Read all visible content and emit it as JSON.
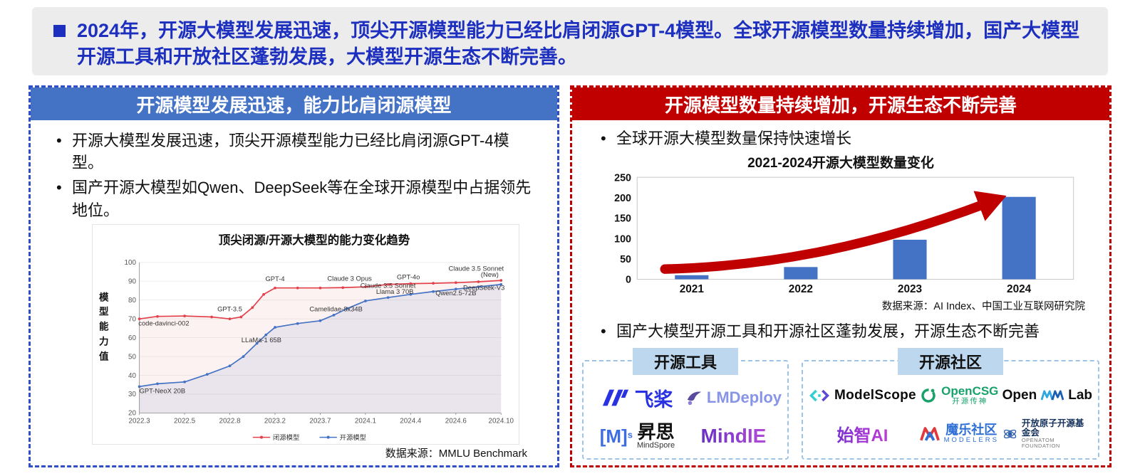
{
  "banner": {
    "text": "2024年，开源大模型发展迅速，顶尖开源模型能力已经比肩闭源GPT-4模型。全球开源模型数量持续增加，国产大模型开源工具和开放社区蓬勃发展，大模型开源生态不断完善。"
  },
  "left_panel": {
    "header": "开源模型发展迅速，能力比肩闭源模型",
    "bullets": [
      "开源大模型发展迅速，顶尖开源模型能力已经比肩闭源GPT-4模型。",
      "国产开源大模型如Qwen、DeepSeek等在全球开源模型中占据领先地位。"
    ]
  },
  "right_panel": {
    "header": "开源模型数量持续增加，开源生态不断完善",
    "bullet_growth": "全球开源大模型数量保持快速增长",
    "bullet_eco": "国产大模型开源工具和开源社区蓬勃发展，开源生态不断完善",
    "tools": {
      "header": "开源工具",
      "items": [
        {
          "name": "paddlepaddle",
          "label": "飞桨"
        },
        {
          "name": "lmdeploy",
          "label": "LMDeploy"
        },
        {
          "name": "mindspore",
          "logo": "[M]",
          "sup": "s",
          "label": "昇思",
          "sub": "MindSpore"
        },
        {
          "name": "mindie",
          "label": "MindIE"
        }
      ]
    },
    "community": {
      "header": "开源社区",
      "items": [
        {
          "name": "modelscope",
          "label": "ModelScope"
        },
        {
          "name": "opencsg",
          "label": "OpenCSG",
          "sub": "开源传神"
        },
        {
          "name": "openmmlab",
          "pre": "Open",
          "post": "Lab"
        },
        {
          "name": "shizhi-ai",
          "label": "始智AI"
        },
        {
          "name": "modelers",
          "label": "魔乐社区",
          "sub": "MODELERS"
        },
        {
          "name": "openatom",
          "label": "开放原子开源基金会",
          "sub": "OPENATOM FOUNDATION"
        }
      ]
    }
  },
  "chart_data": [
    {
      "id": "capability-trend",
      "type": "line",
      "title": "顶尖闭源/开源大模型的能力变化趋势",
      "ylabel": "模型能力值",
      "ylim": [
        20,
        100
      ],
      "ytick_step": 10,
      "grid": true,
      "legend_position": "bottom",
      "x_ticks": [
        "2022.3",
        "2022.5",
        "2022.8",
        "2023.2",
        "2023.7",
        "2024.1",
        "2024.4",
        "2024.6",
        "2024.10"
      ],
      "series": [
        {
          "name": "闭源模型",
          "color": "#e2414b",
          "fill": "rgba(226,65,75,0.07)",
          "points": [
            [
              0,
              70
            ],
            [
              0.4,
              71.3
            ],
            [
              1,
              71.5
            ],
            [
              1.6,
              71
            ],
            [
              2,
              70
            ],
            [
              2.25,
              71
            ],
            [
              2.5,
              76
            ],
            [
              2.75,
              83
            ],
            [
              3,
              86.4
            ],
            [
              3.5,
              86.4
            ],
            [
              4,
              86.4
            ],
            [
              4.5,
              86.6
            ],
            [
              5,
              87
            ],
            [
              5.5,
              88.3
            ],
            [
              6,
              88.7
            ],
            [
              6.5,
              88.9
            ],
            [
              7,
              89.2
            ],
            [
              7.5,
              89.7
            ],
            [
              8,
              90.4
            ]
          ]
        },
        {
          "name": "开源模型",
          "color": "#4472c4",
          "fill": "rgba(68,114,196,0.10)",
          "points": [
            [
              0,
              34
            ],
            [
              0.4,
              35.5
            ],
            [
              1,
              36.5
            ],
            [
              1.5,
              40.5
            ],
            [
              2,
              45
            ],
            [
              2.3,
              50
            ],
            [
              2.6,
              57
            ],
            [
              2.8,
              61.5
            ],
            [
              3,
              65.5
            ],
            [
              3.5,
              67.5
            ],
            [
              4,
              69
            ],
            [
              4.3,
              72
            ],
            [
              4.6,
              75.5
            ],
            [
              5,
              79.5
            ],
            [
              5.5,
              81.3
            ],
            [
              6,
              83
            ],
            [
              6.5,
              84.5
            ],
            [
              7,
              85.8
            ],
            [
              7.5,
              87
            ],
            [
              8,
              88.3
            ]
          ]
        }
      ],
      "annotations": [
        {
          "text": "code-davinci-002",
          "x": -0.02,
          "y": 66.5,
          "anchor": "start"
        },
        {
          "text": "GPT-NeoX 20B",
          "x": 0,
          "y": 30.5,
          "anchor": "start"
        },
        {
          "text": "GPT-3.5",
          "x": 2,
          "y": 74,
          "anchor": "middle"
        },
        {
          "text": "LLaMa-1 65B",
          "x": 2.7,
          "y": 57.5,
          "anchor": "middle"
        },
        {
          "text": "GPT-4",
          "x": 3,
          "y": 90,
          "anchor": "middle"
        },
        {
          "text": "Camelidae-8x34B",
          "x": 4.35,
          "y": 74,
          "anchor": "middle"
        },
        {
          "text": "Claude 3 Opus",
          "x": 4.65,
          "y": 90.2,
          "anchor": "middle"
        },
        {
          "text": "GPT-4o",
          "x": 5.95,
          "y": 91,
          "anchor": "middle"
        },
        {
          "text": "Claude 3.5 Sonnet",
          "x": 5.5,
          "y": 86.5,
          "anchor": "middle"
        },
        {
          "text": "Llama 3 70B",
          "x": 5.65,
          "y": 83.3,
          "anchor": "middle"
        },
        {
          "text": "Qwen2.5-72B",
          "x": 7.0,
          "y": 82.5,
          "anchor": "middle"
        },
        {
          "text": "Claude 3.5 Sonnet",
          "x": 7.45,
          "y": 95.5,
          "anchor": "middle"
        },
        {
          "text": "(New)",
          "x": 7.75,
          "y": 92.3,
          "anchor": "middle"
        },
        {
          "text": "DeepSeek-V3",
          "x": 8.08,
          "y": 85.3,
          "anchor": "end"
        }
      ],
      "source": "数据来源：MMLU Benchmark"
    },
    {
      "id": "open-model-count",
      "type": "bar",
      "title": "2021-2024开源大模型数量变化",
      "categories": [
        "2021",
        "2022",
        "2023",
        "2024"
      ],
      "values": [
        10,
        30,
        97,
        202
      ],
      "ylim": [
        0,
        250
      ],
      "yticks": [
        0,
        50,
        100,
        150,
        200,
        250
      ],
      "bar_color": "#4472c4",
      "arrow_color": "#c00000",
      "source": "数据来源：AI Index、中国工业互联网研究院"
    }
  ]
}
